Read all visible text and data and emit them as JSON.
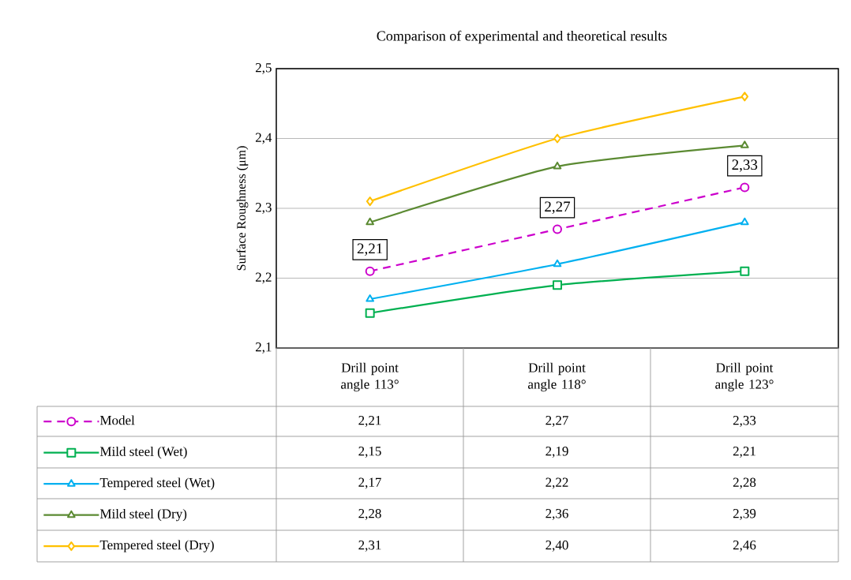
{
  "chart_data": {
    "type": "line",
    "title": "Comparison of experimental and theoretical results",
    "ylabel": "Surface Roughness (μm)",
    "categories": [
      "Drill point angle 113°",
      "Drill point angle 118°",
      "Drill point angle 123°"
    ],
    "ylim": [
      2.1,
      2.5
    ],
    "yticks": [
      {
        "value": 2.1,
        "label": "2,1"
      },
      {
        "value": 2.2,
        "label": "2,2"
      },
      {
        "value": 2.3,
        "label": "2,3"
      },
      {
        "value": 2.4,
        "label": "2,4"
      },
      {
        "value": 2.5,
        "label": "2,5"
      }
    ],
    "grid": "y",
    "legend": "bottom",
    "series": [
      {
        "name": "Model",
        "color": "#cc00cc",
        "marker": "circle",
        "line_style": "dashed",
        "values": [
          2.21,
          2.27,
          2.33
        ],
        "value_labels": [
          "2,21",
          "2,27",
          "2,33"
        ]
      },
      {
        "name": "Mild steel  (Wet)",
        "color": "#00b050",
        "marker": "square",
        "line_style": "solid",
        "values": [
          2.15,
          2.19,
          2.21
        ],
        "value_labels": [
          "2,15",
          "2,19",
          "2,21"
        ]
      },
      {
        "name": "Tempered steel  (Wet)",
        "color": "#00b0f0",
        "marker": "triangle",
        "line_style": "solid",
        "values": [
          2.17,
          2.22,
          2.28
        ],
        "value_labels": [
          "2,17",
          "2,22",
          "2,28"
        ]
      },
      {
        "name": "Mild steel  (Dry)",
        "color": "#5b8a32",
        "marker": "triangle",
        "line_style": "solid",
        "values": [
          2.28,
          2.36,
          2.39
        ],
        "value_labels": [
          "2,28",
          "2,36",
          "2,39"
        ]
      },
      {
        "name": "Tempered steel  (Dry)",
        "color": "#ffc000",
        "marker": "diamond",
        "line_style": "solid",
        "values": [
          2.31,
          2.4,
          2.46
        ],
        "value_labels": [
          "2,31",
          "2,40",
          "2,46"
        ]
      }
    ]
  }
}
